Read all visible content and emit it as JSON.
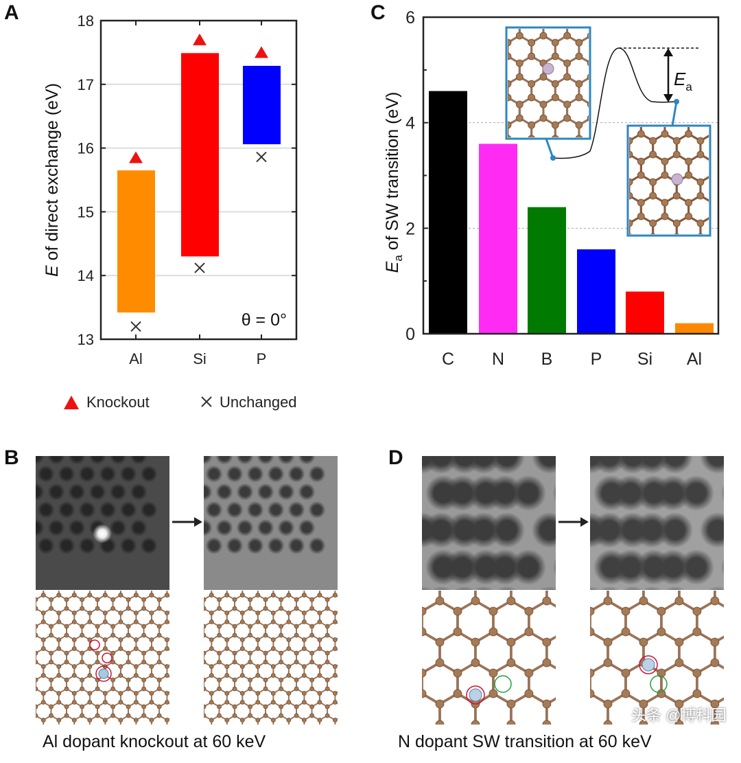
{
  "panels": {
    "a": "A",
    "b": "B",
    "c": "C",
    "d": "D"
  },
  "chart_data": [
    {
      "type": "bar",
      "panel": "A",
      "subtype": "floating-range",
      "categories": [
        "Al",
        "Si",
        "P"
      ],
      "ranges": [
        [
          13.42,
          15.65
        ],
        [
          14.3,
          17.49
        ],
        [
          16.06,
          17.29
        ]
      ],
      "colors": [
        "#ff8c00",
        "#ff0000",
        "#0000ff"
      ],
      "series": [
        {
          "name": "Knockout",
          "marker": "triangle",
          "color": "#ee1111",
          "values": [
            15.85,
            17.7,
            17.5
          ]
        },
        {
          "name": "Unchanged",
          "marker": "x",
          "color": "#333333",
          "values": [
            13.2,
            14.12,
            15.86
          ]
        }
      ],
      "ylabel_italic": "E",
      "ylabel": " of direct exchange (eV)",
      "ylim": [
        13,
        18
      ],
      "yticks": [
        "13",
        "14",
        "15",
        "16",
        "17",
        "18"
      ],
      "grid": true,
      "annotation": "θ = 0°",
      "legend_position": "bottom"
    },
    {
      "type": "bar",
      "panel": "C",
      "categories": [
        "C",
        "N",
        "B",
        "P",
        "Si",
        "Al"
      ],
      "values": [
        4.6,
        3.6,
        2.4,
        1.6,
        0.8,
        0.2
      ],
      "colors": [
        "#000000",
        "#ff2bf5",
        "#007a00",
        "#0000ff",
        "#ff0000",
        "#ff8800"
      ],
      "ylabel_italic": "E",
      "ylabel_sub": "a",
      "ylabel": " of SW transition (eV)",
      "ylim": [
        0,
        6
      ],
      "yticks": [
        "0",
        "2",
        "4",
        "6"
      ],
      "grid": "dashed at 2 and 4",
      "inset_label": "E",
      "inset_label_sub": "a"
    }
  ],
  "captions": {
    "b": "Al dopant knockout at 60 keV",
    "d": "N dopant SW transition at 60 keV"
  },
  "watermark": "头条 @博科园"
}
